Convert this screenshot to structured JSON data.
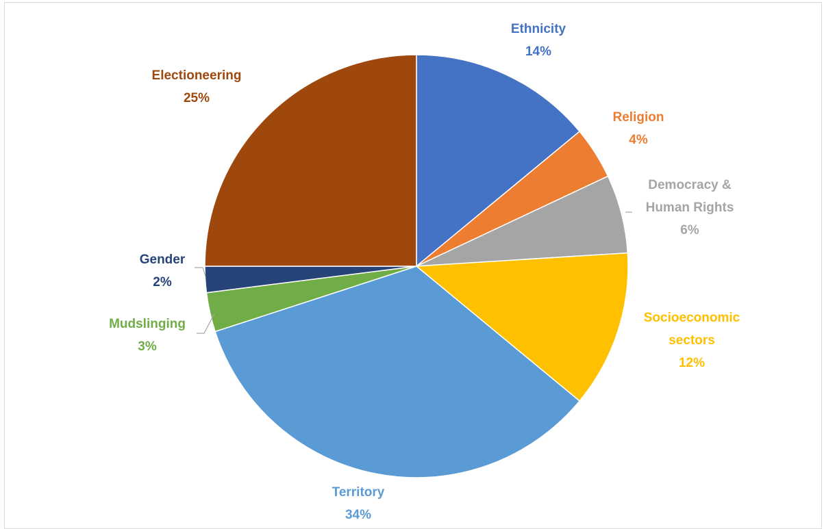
{
  "chart_data": {
    "type": "pie",
    "title": "",
    "start_angle_deg": 0,
    "direction": "clockwise",
    "slices": [
      {
        "label": "Ethnicity",
        "value": 14,
        "display": "14%",
        "color": "#4472C4"
      },
      {
        "label": "Religion",
        "value": 4,
        "display": "4%",
        "color": "#ED7D31"
      },
      {
        "label": "Democracy & Human Rights",
        "label_lines": [
          "Democracy &",
          "Human Rights"
        ],
        "value": 6,
        "display": "6%",
        "color": "#A5A5A5"
      },
      {
        "label": "Socioeconomic sectors",
        "label_lines": [
          "Socioeconomic",
          "sectors"
        ],
        "value": 12,
        "display": "12%",
        "color": "#FFC000"
      },
      {
        "label": "Territory",
        "value": 34,
        "display": "34%",
        "color": "#5B9BD5"
      },
      {
        "label": "Mudslinging",
        "value": 3,
        "display": "3%",
        "color": "#70AD47"
      },
      {
        "label": "Gender",
        "value": 2,
        "display": "2%",
        "color": "#264478"
      },
      {
        "label": "Electioneering",
        "value": 25,
        "display": "25%",
        "color": "#9E480E"
      }
    ],
    "legend": "none",
    "data_labels": "outside with leader lines"
  }
}
